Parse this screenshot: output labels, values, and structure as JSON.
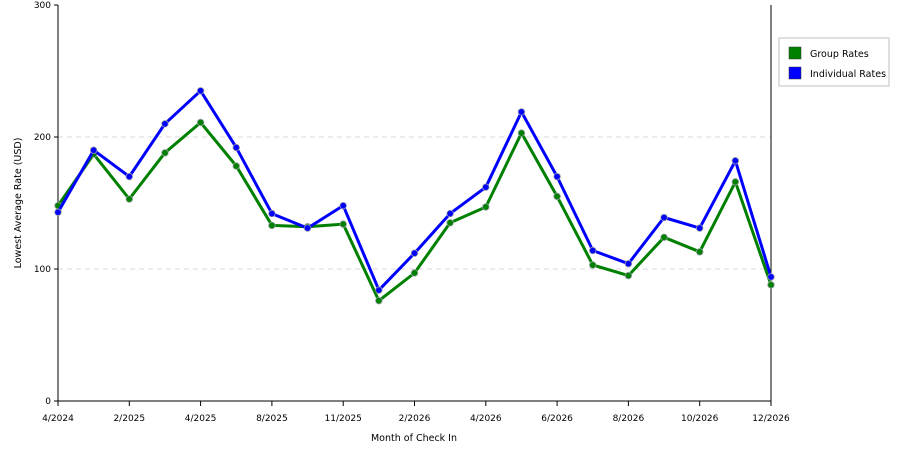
{
  "chart_data": {
    "type": "line",
    "xlabel": "Month of Check In",
    "ylabel": "Lowest Average Rate (USD)",
    "ylim": [
      0,
      300
    ],
    "yticks": [
      0,
      100,
      200,
      300
    ],
    "grid": "horizontal dashed",
    "legend_position": "right",
    "x_tick_labels": [
      "4/2024",
      "2/2025",
      "4/2025",
      "8/2025",
      "11/2025",
      "2/2026",
      "4/2026",
      "6/2026",
      "8/2026",
      "10/2026",
      "12/2026"
    ],
    "series": [
      {
        "name": "Group Rates",
        "color": "#008000",
        "values": [
          148,
          187,
          153,
          188,
          211,
          178,
          133,
          132,
          134,
          76,
          97,
          135,
          147,
          203,
          155,
          103,
          95,
          124,
          113,
          166,
          88
        ]
      },
      {
        "name": "Individual Rates",
        "color": "#0000ff",
        "values": [
          143,
          190,
          170,
          210,
          235,
          192,
          142,
          131,
          148,
          84,
          112,
          142,
          162,
          219,
          170,
          114,
          104,
          139,
          131,
          182,
          94
        ]
      }
    ]
  }
}
